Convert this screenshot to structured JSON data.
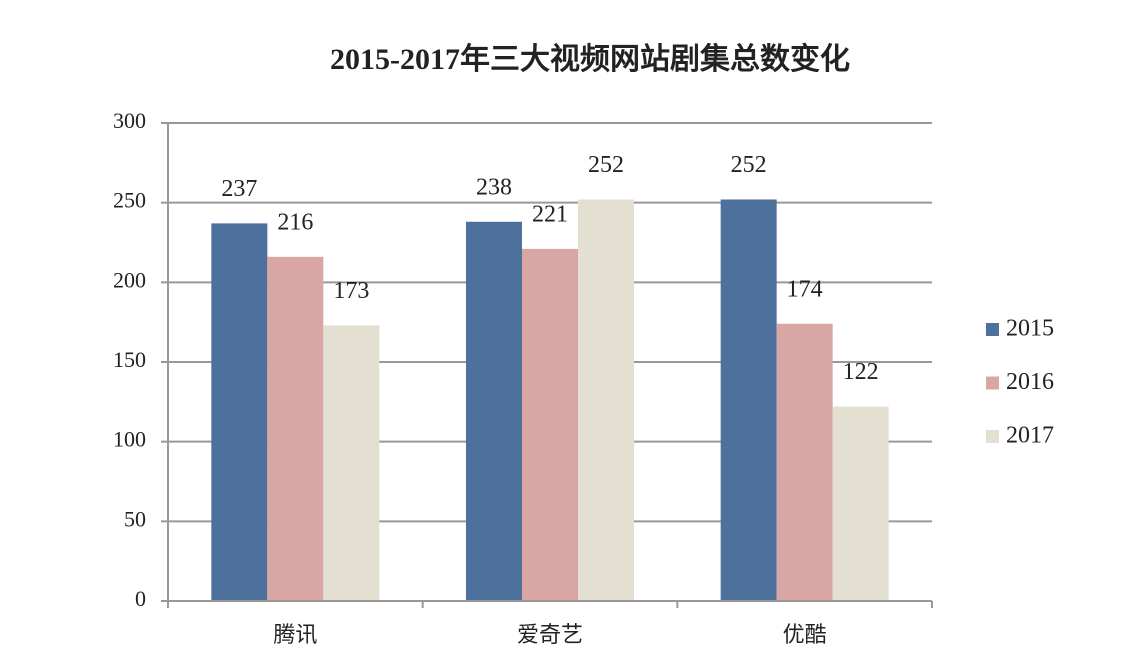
{
  "chart_data": {
    "type": "bar",
    "title": "2015-2017年三大视频网站剧集总数变化",
    "categories": [
      "腾讯",
      "爱奇艺",
      "优酷"
    ],
    "series": [
      {
        "name": "2015",
        "color": "#4e709d",
        "values": [
          237,
          238,
          252
        ]
      },
      {
        "name": "2016",
        "color": "#d9a7a3",
        "values": [
          216,
          221,
          174
        ]
      },
      {
        "name": "2017",
        "color": "#e4e0d1",
        "values": [
          173,
          252,
          122
        ]
      }
    ],
    "ylim": [
      0,
      300
    ],
    "yticks": [
      0,
      50,
      100,
      150,
      200,
      250,
      300
    ],
    "grid": true,
    "legend": "right"
  }
}
